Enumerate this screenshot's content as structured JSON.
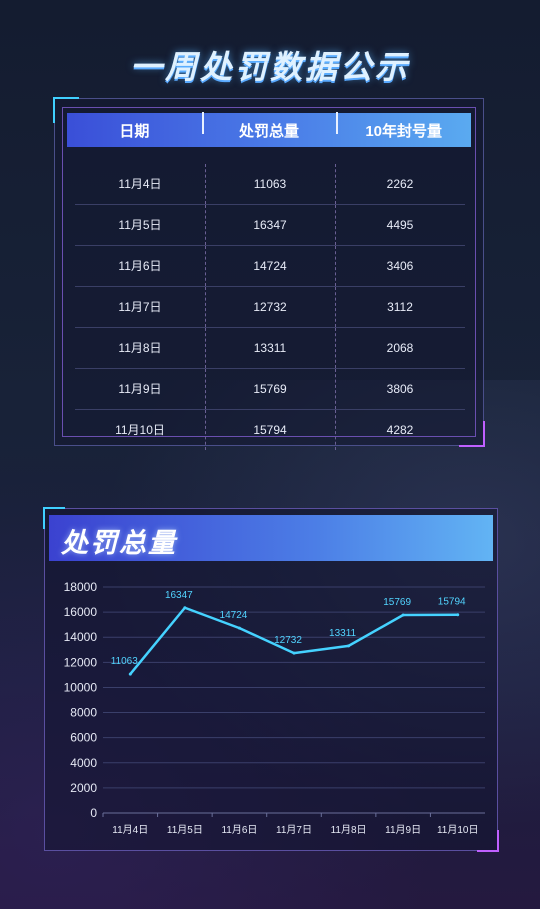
{
  "page_title": "一周处罚数据公示",
  "table": {
    "headers": [
      "日期",
      "处罚总量",
      "10年封号量"
    ],
    "rows": [
      [
        "11月4日",
        "11063",
        "2262"
      ],
      [
        "11月5日",
        "16347",
        "4495"
      ],
      [
        "11月6日",
        "14724",
        "3406"
      ],
      [
        "11月7日",
        "12732",
        "3112"
      ],
      [
        "11月8日",
        "13311",
        "2068"
      ],
      [
        "11月9日",
        "15769",
        "3806"
      ],
      [
        "11月10日",
        "15794",
        "4282"
      ]
    ]
  },
  "chart_panel_title": "处罚总量",
  "colors": {
    "line": "#45d2ff",
    "label": "#52d4ff",
    "header_start": "#3a4fd8",
    "header_end": "#5aaaf0"
  },
  "chart_data": {
    "type": "line",
    "title": "处罚总量",
    "categories": [
      "11月4日",
      "11月5日",
      "11月6日",
      "11月7日",
      "11月8日",
      "11月9日",
      "11月10日"
    ],
    "series": [
      {
        "values": [
          11063,
          16347,
          14724,
          12732,
          13311,
          15769,
          15794
        ]
      }
    ],
    "yticks": [
      0,
      2000,
      4000,
      6000,
      8000,
      10000,
      12000,
      14000,
      16000,
      18000
    ],
    "ylim": [
      0,
      18000
    ],
    "grid": true,
    "data_labels": true
  }
}
